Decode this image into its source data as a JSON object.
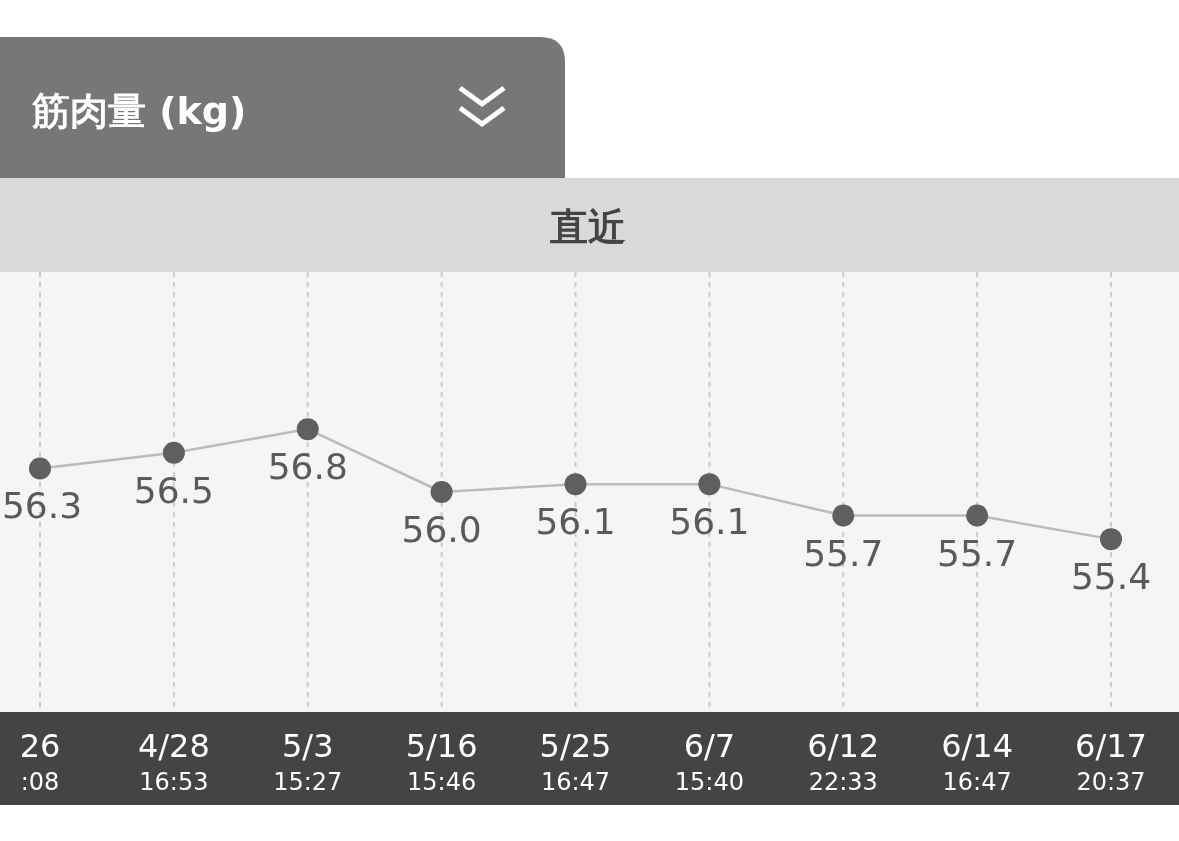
{
  "chart_data": {
    "type": "line",
    "title": "筋肉量 (kg)",
    "subtitle": "直近",
    "categories": [
      "26\n:08",
      "4/28\n16:53",
      "5/3\n15:27",
      "5/16\n15:46",
      "5/25\n16:47",
      "6/7\n15:40",
      "6/12\n22:33",
      "6/14\n16:47",
      "6/17\n20:37"
    ],
    "series": [
      {
        "color": "#5f5f5f",
        "values": [
          56.3,
          56.5,
          56.8,
          56.0,
          56.1,
          56.1,
          55.7,
          55.7,
          55.4
        ],
        "value_labels": [
          "56.3",
          "56.5",
          "56.8",
          "56.0",
          "56.1",
          "56.1",
          "55.7",
          "55.7",
          "55.4"
        ]
      }
    ],
    "ylim": [
      53.2,
      58.8
    ],
    "grid": "x",
    "marker": "circle",
    "line_style": "solid"
  }
}
